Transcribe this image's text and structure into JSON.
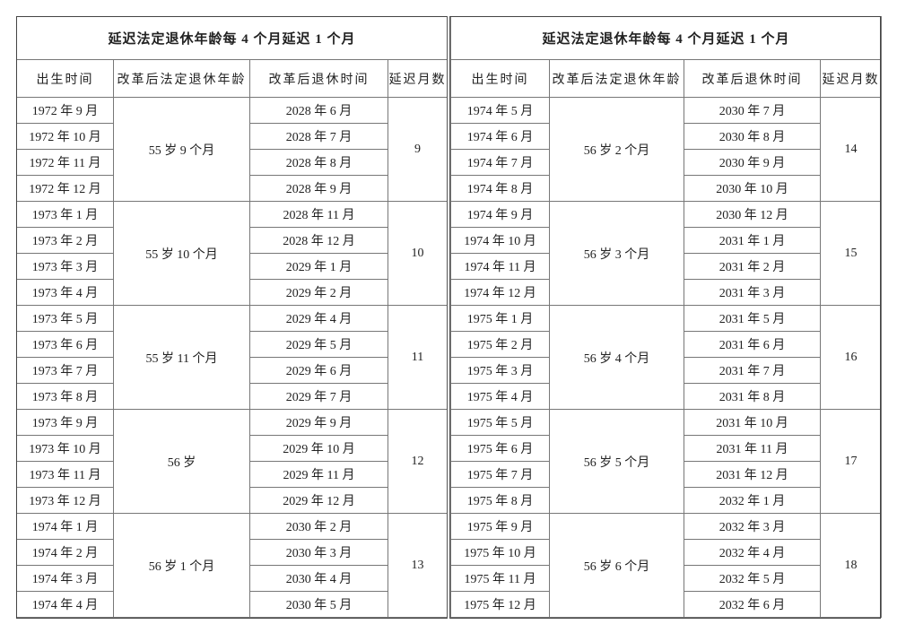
{
  "tables": [
    {
      "title": "延迟法定退休年龄每 4 个月延迟 1 个月",
      "headers": [
        "出生时间",
        "改革后法定退休年龄",
        "改革后退休时间",
        "延迟月数"
      ],
      "groups": [
        {
          "age": "55 岁 9 个月",
          "delay": "9",
          "rows": [
            {
              "birth": "1972 年 9 月",
              "retire": "2028 年 6 月"
            },
            {
              "birth": "1972 年 10 月",
              "retire": "2028 年 7 月"
            },
            {
              "birth": "1972 年 11 月",
              "retire": "2028 年 8 月"
            },
            {
              "birth": "1972 年 12 月",
              "retire": "2028 年 9 月"
            }
          ]
        },
        {
          "age": "55 岁 10 个月",
          "delay": "10",
          "rows": [
            {
              "birth": "1973 年 1 月",
              "retire": "2028 年 11 月"
            },
            {
              "birth": "1973 年 2 月",
              "retire": "2028 年 12 月"
            },
            {
              "birth": "1973 年 3 月",
              "retire": "2029 年 1 月"
            },
            {
              "birth": "1973 年 4 月",
              "retire": "2029 年 2 月"
            }
          ]
        },
        {
          "age": "55 岁 11 个月",
          "delay": "11",
          "rows": [
            {
              "birth": "1973 年 5 月",
              "retire": "2029 年 4 月"
            },
            {
              "birth": "1973 年 6 月",
              "retire": "2029 年 5 月"
            },
            {
              "birth": "1973 年 7 月",
              "retire": "2029 年 6 月"
            },
            {
              "birth": "1973 年 8 月",
              "retire": "2029 年 7 月"
            }
          ]
        },
        {
          "age": "56 岁",
          "delay": "12",
          "rows": [
            {
              "birth": "1973 年 9 月",
              "retire": "2029 年 9 月"
            },
            {
              "birth": "1973 年 10 月",
              "retire": "2029 年 10 月"
            },
            {
              "birth": "1973 年 11 月",
              "retire": "2029 年 11 月"
            },
            {
              "birth": "1973 年 12 月",
              "retire": "2029 年 12 月"
            }
          ]
        },
        {
          "age": "56 岁 1 个月",
          "delay": "13",
          "rows": [
            {
              "birth": "1974 年 1 月",
              "retire": "2030 年 2 月"
            },
            {
              "birth": "1974 年 2 月",
              "retire": "2030 年 3 月"
            },
            {
              "birth": "1974 年 3 月",
              "retire": "2030 年 4 月"
            },
            {
              "birth": "1974 年 4 月",
              "retire": "2030 年 5 月"
            }
          ]
        }
      ]
    },
    {
      "title": "延迟法定退休年龄每 4 个月延迟 1 个月",
      "headers": [
        "出生时间",
        "改革后法定退休年龄",
        "改革后退休时间",
        "延迟月数"
      ],
      "groups": [
        {
          "age": "56 岁 2 个月",
          "delay": "14",
          "rows": [
            {
              "birth": "1974 年 5 月",
              "retire": "2030 年 7 月"
            },
            {
              "birth": "1974 年 6 月",
              "retire": "2030 年 8 月"
            },
            {
              "birth": "1974 年 7 月",
              "retire": "2030 年 9 月"
            },
            {
              "birth": "1974 年 8 月",
              "retire": "2030 年 10 月"
            }
          ]
        },
        {
          "age": "56 岁 3 个月",
          "delay": "15",
          "rows": [
            {
              "birth": "1974 年 9 月",
              "retire": "2030 年 12 月"
            },
            {
              "birth": "1974 年 10 月",
              "retire": "2031 年 1 月"
            },
            {
              "birth": "1974 年 11 月",
              "retire": "2031 年 2 月"
            },
            {
              "birth": "1974 年 12 月",
              "retire": "2031 年 3 月"
            }
          ]
        },
        {
          "age": "56 岁 4 个月",
          "delay": "16",
          "rows": [
            {
              "birth": "1975 年 1 月",
              "retire": "2031 年 5 月"
            },
            {
              "birth": "1975 年 2 月",
              "retire": "2031 年 6 月"
            },
            {
              "birth": "1975 年 3 月",
              "retire": "2031 年 7 月"
            },
            {
              "birth": "1975 年 4 月",
              "retire": "2031 年 8 月"
            }
          ]
        },
        {
          "age": "56 岁 5 个月",
          "delay": "17",
          "rows": [
            {
              "birth": "1975 年 5 月",
              "retire": "2031 年 10 月"
            },
            {
              "birth": "1975 年 6 月",
              "retire": "2031 年 11 月"
            },
            {
              "birth": "1975 年 7 月",
              "retire": "2031 年 12 月"
            },
            {
              "birth": "1975 年 8 月",
              "retire": "2032 年 1 月"
            }
          ]
        },
        {
          "age": "56 岁 6 个月",
          "delay": "18",
          "rows": [
            {
              "birth": "1975 年 9 月",
              "retire": "2032 年 3 月"
            },
            {
              "birth": "1975 年 10 月",
              "retire": "2032 年 4 月"
            },
            {
              "birth": "1975 年 11 月",
              "retire": "2032 年 5 月"
            },
            {
              "birth": "1975 年 12 月",
              "retire": "2032 年 6 月"
            }
          ]
        }
      ]
    }
  ]
}
